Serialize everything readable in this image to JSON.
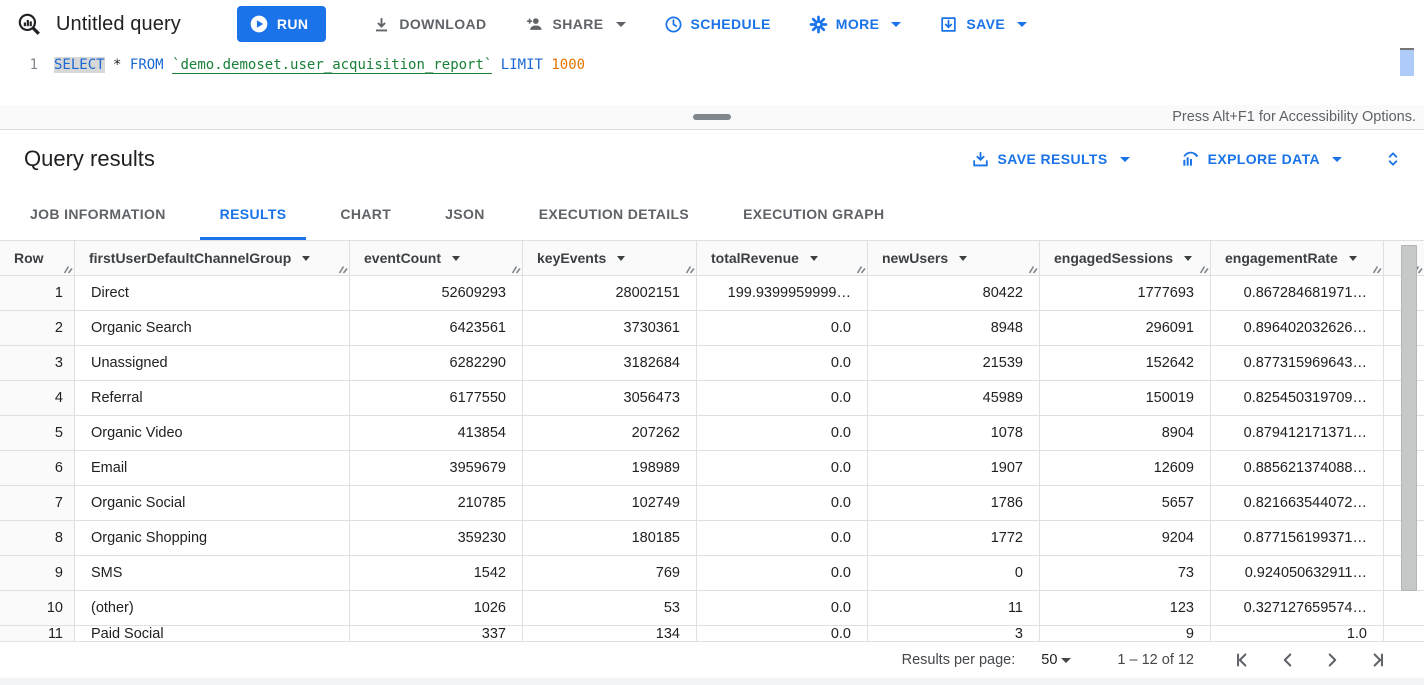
{
  "colors": {
    "accent_blue": "#1a73e8",
    "keyword_blue": "#1967d2",
    "table_ref_green": "#188038",
    "number_orange": "#e37400",
    "muted_gray": "#5f6368"
  },
  "toolbar": {
    "title": "Untitled query",
    "run_label": "RUN",
    "download_label": "DOWNLOAD",
    "share_label": "SHARE",
    "schedule_label": "SCHEDULE",
    "more_label": "MORE",
    "save_label": "SAVE"
  },
  "editor": {
    "line_number": "1",
    "tokens": [
      {
        "text": "SELECT",
        "type": "keyword",
        "selected": true
      },
      {
        "text": " ",
        "type": "plain"
      },
      {
        "text": "*",
        "type": "plain"
      },
      {
        "text": " ",
        "type": "plain"
      },
      {
        "text": "FROM",
        "type": "keyword"
      },
      {
        "text": " ",
        "type": "plain"
      },
      {
        "text": "`demo.demoset.user_acquisition_report`",
        "type": "table-ref"
      },
      {
        "text": " ",
        "type": "plain"
      },
      {
        "text": "LIMIT",
        "type": "keyword"
      },
      {
        "text": " ",
        "type": "plain"
      },
      {
        "text": "1000",
        "type": "number"
      }
    ]
  },
  "accessibility_note": "Press Alt+F1 for Accessibility Options.",
  "results_header": {
    "title": "Query results",
    "save_results_label": "SAVE RESULTS",
    "explore_data_label": "EXPLORE DATA"
  },
  "tabs": [
    {
      "label": "JOB INFORMATION",
      "active": false
    },
    {
      "label": "RESULTS",
      "active": true
    },
    {
      "label": "CHART",
      "active": false
    },
    {
      "label": "JSON",
      "active": false
    },
    {
      "label": "EXECUTION DETAILS",
      "active": false
    },
    {
      "label": "EXECUTION GRAPH",
      "active": false
    }
  ],
  "table": {
    "columns": [
      {
        "label": "Row",
        "sortable": false,
        "align": "right"
      },
      {
        "label": "firstUserDefaultChannelGroup",
        "sortable": true,
        "align": "left"
      },
      {
        "label": "eventCount",
        "sortable": true,
        "align": "right"
      },
      {
        "label": "keyEvents",
        "sortable": true,
        "align": "right"
      },
      {
        "label": "totalRevenue",
        "sortable": true,
        "align": "right"
      },
      {
        "label": "newUsers",
        "sortable": true,
        "align": "right"
      },
      {
        "label": "engagedSessions",
        "sortable": true,
        "align": "right"
      },
      {
        "label": "engagementRate",
        "sortable": true,
        "align": "right"
      }
    ],
    "rows": [
      [
        "1",
        "Direct",
        "52609293",
        "28002151",
        "199.9399959999…",
        "80422",
        "1777693",
        "0.867284681971…"
      ],
      [
        "2",
        "Organic Search",
        "6423561",
        "3730361",
        "0.0",
        "8948",
        "296091",
        "0.896402032626…"
      ],
      [
        "3",
        "Unassigned",
        "6282290",
        "3182684",
        "0.0",
        "21539",
        "152642",
        "0.877315969643…"
      ],
      [
        "4",
        "Referral",
        "6177550",
        "3056473",
        "0.0",
        "45989",
        "150019",
        "0.825450319709…"
      ],
      [
        "5",
        "Organic Video",
        "413854",
        "207262",
        "0.0",
        "1078",
        "8904",
        "0.879412171371…"
      ],
      [
        "6",
        "Email",
        "3959679",
        "198989",
        "0.0",
        "1907",
        "12609",
        "0.885621374088…"
      ],
      [
        "7",
        "Organic Social",
        "210785",
        "102749",
        "0.0",
        "1786",
        "5657",
        "0.821663544072…"
      ],
      [
        "8",
        "Organic Shopping",
        "359230",
        "180185",
        "0.0",
        "1772",
        "9204",
        "0.877156199371…"
      ],
      [
        "9",
        "SMS",
        "1542",
        "769",
        "0.0",
        "0",
        "73",
        "0.924050632911…"
      ],
      [
        "10",
        "(other)",
        "1026",
        "53",
        "0.0",
        "11",
        "123",
        "0.327127659574…"
      ]
    ],
    "partial_row": [
      "11",
      "Paid Social",
      "337",
      "134",
      "0.0",
      "3",
      "9",
      "1.0"
    ]
  },
  "pagination": {
    "per_page_label": "Results per page:",
    "page_size": "50",
    "range": "1 – 12 of 12"
  },
  "icons": {
    "bq_query": "magnifier-with-bars",
    "run": "play-circle",
    "download": "arrow-down-to-bar",
    "share": "person-add",
    "schedule": "clock",
    "more": "gear",
    "save": "box-arrow-down",
    "save_results": "download-tray",
    "explore_data": "chart-magnifier",
    "expand": "unfold-more",
    "pagination": [
      "first-page",
      "previous-page",
      "next-page",
      "last-page"
    ]
  }
}
